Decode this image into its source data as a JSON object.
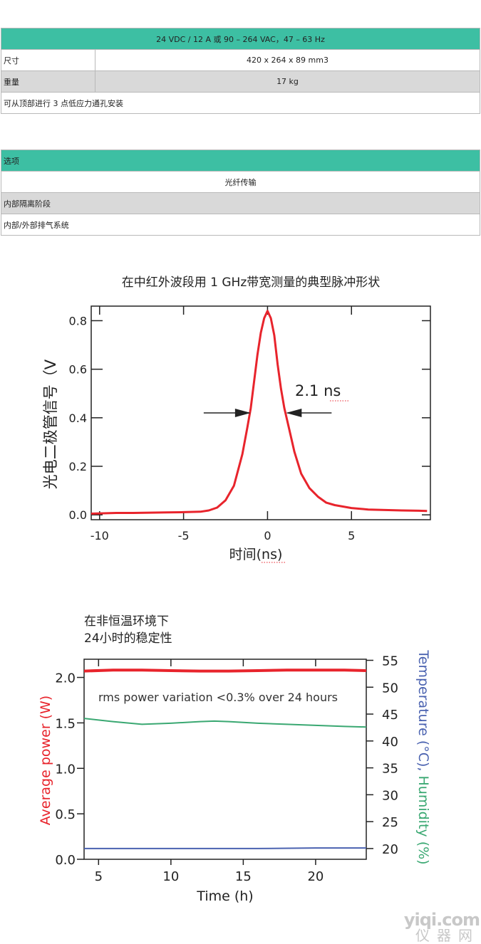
{
  "spec_table": {
    "header": "24 VDC / 12 A 或 90 – 264 VAC，47 – 63 Hz",
    "rows": [
      {
        "label": "尺寸",
        "value": "420 x 264 x 89 mm3"
      },
      {
        "label": "重量",
        "value": "17 kg"
      }
    ],
    "note": "可从顶部进行 3 点低应力通孔安装"
  },
  "options_table": {
    "header": "选项",
    "rows": [
      "光纤传输",
      "内部隔离阶段",
      "内部/外部排气系统"
    ]
  },
  "colors": {
    "teal": "#3dbfa3",
    "grey": "#d9d9d9",
    "pulse": "#e8242c",
    "power": "#e8242c",
    "humidity": "#3aa872",
    "temperature": "#4a62b0"
  },
  "chart_data": [
    {
      "type": "line",
      "title": "在中红外波段用 1 GHz带宽测量的典型脉冲形状",
      "xlabel": "时间(ns)",
      "ylabel": "光电二极管信号（V",
      "xlim": [
        -10.5,
        9.7
      ],
      "ylim": [
        -0.02,
        0.86
      ],
      "xticks": [
        -10,
        -5,
        0,
        5
      ],
      "yticks": [
        0.0,
        0.2,
        0.4,
        0.6,
        0.8
      ],
      "xtick_labels": [
        "-10",
        "-5",
        "0",
        "5"
      ],
      "ytick_labels": [
        "0.0",
        "0.2",
        "0.4",
        "0.6",
        "0.8"
      ],
      "annotation": "2.1 ns",
      "fwhm": [
        -1.0,
        1.1
      ],
      "series": [
        {
          "x": [
            -10.5,
            -9,
            -8,
            -7,
            -6,
            -5,
            -4,
            -3.5,
            -3,
            -2.5,
            -2,
            -1.5,
            -1.2,
            -1,
            -0.8,
            -0.6,
            -0.4,
            -0.2,
            0,
            0.2,
            0.4,
            0.6,
            0.8,
            1,
            1.3,
            1.6,
            2,
            2.5,
            3,
            3.5,
            4,
            5,
            6,
            7,
            8,
            9,
            9.5
          ],
          "y": [
            0.005,
            0.008,
            0.008,
            0.009,
            0.01,
            0.011,
            0.013,
            0.018,
            0.03,
            0.06,
            0.12,
            0.25,
            0.36,
            0.44,
            0.55,
            0.66,
            0.75,
            0.81,
            0.84,
            0.81,
            0.74,
            0.62,
            0.52,
            0.44,
            0.35,
            0.26,
            0.17,
            0.11,
            0.075,
            0.05,
            0.04,
            0.028,
            0.022,
            0.02,
            0.018,
            0.017,
            0.016
          ]
        }
      ]
    },
    {
      "type": "line",
      "title": "在非恒温环境下",
      "subtitle": "24小时的稳定性",
      "xlabel": "Time (h)",
      "ylabel_left": "Average power (W)",
      "ylabel_right": "Temperature (°C), Humidity (%)",
      "xlim": [
        4,
        23.5
      ],
      "ylim_left": [
        0,
        2.2
      ],
      "ylim_right": [
        18,
        55.2
      ],
      "xticks": [
        5,
        10,
        15,
        20
      ],
      "yticks_left": [
        0.0,
        0.5,
        1.0,
        1.5,
        2.0
      ],
      "yticks_right": [
        20,
        25,
        30,
        35,
        40,
        45,
        50,
        55
      ],
      "xtick_labels": [
        "5",
        "10",
        "15",
        "20"
      ],
      "ytick_labels_left": [
        "0.0",
        "0.5",
        "1.0",
        "1.5",
        "2.0"
      ],
      "ytick_labels_right": [
        "20",
        "25",
        "30",
        "35",
        "40",
        "45",
        "50",
        "55"
      ],
      "annotation": "rms power variation <0.3% over 24 hours",
      "series": [
        {
          "axis": "left",
          "color": "power",
          "x": [
            4,
            6,
            8,
            10,
            12,
            14,
            16,
            18,
            20,
            22,
            23.5
          ],
          "y": [
            2.07,
            2.08,
            2.08,
            2.075,
            2.07,
            2.07,
            2.075,
            2.08,
            2.08,
            2.08,
            2.075
          ]
        },
        {
          "axis": "right",
          "color": "humidity",
          "x": [
            4,
            6,
            8,
            10,
            12,
            13,
            14,
            16,
            18,
            20,
            22,
            23.5
          ],
          "y": [
            44.2,
            43.6,
            43.1,
            43.3,
            43.6,
            43.7,
            43.6,
            43.3,
            43.1,
            42.9,
            42.7,
            42.6
          ]
        },
        {
          "axis": "right",
          "color": "temperature",
          "x": [
            4,
            8,
            12,
            16,
            20,
            23.5
          ],
          "y": [
            20.0,
            20.0,
            20.0,
            20.0,
            20.1,
            20.1
          ]
        }
      ]
    }
  ],
  "watermark": {
    "line1": "yiqi.com",
    "line2": "仪器网"
  }
}
